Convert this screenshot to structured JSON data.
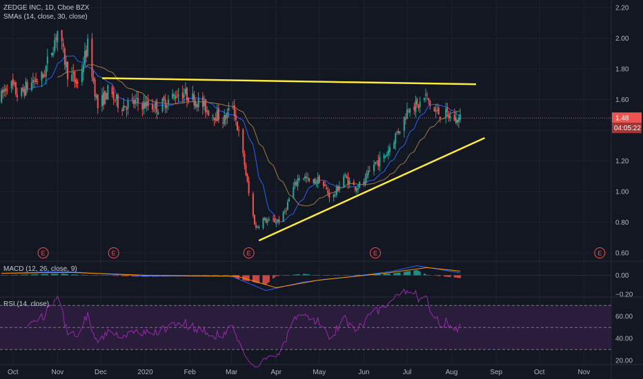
{
  "header": {
    "symbol_line": "ZEDGE INC, 1D, Cboe BZX",
    "sma_line": "SMAs (14, close, 30, close)",
    "macd_line": "MACD (12, 26, close, 9)",
    "rsi_line": "RSI (14, close)"
  },
  "price_tag": {
    "value": "1.48",
    "countdown": "04:05:22"
  },
  "earnings_marker_label": "E",
  "colors": {
    "background": "#131722",
    "grid": "#1e2230",
    "up": "#26a69a",
    "down": "#ef5350",
    "sma_fast": "#2962ff",
    "sma_slow": "#9c7b4a",
    "trendline": "#ffeb3b",
    "rsi_line": "#9c27b0",
    "rsi_band": "#2a1d3b",
    "macd_line": "#2962ff",
    "signal_line": "#ff9800",
    "price_tag": "#ef5350"
  },
  "chart_data": [
    {
      "type": "candlestick",
      "ylim": [
        0.55,
        2.25
      ],
      "y_ticks": [
        0.6,
        0.8,
        1.0,
        1.2,
        1.4,
        1.6,
        1.8,
        2.0,
        2.2
      ],
      "x_ticks": [
        "Oct",
        "Nov",
        "Dec",
        "2020",
        "Feb",
        "Mar",
        "Apr",
        "May",
        "Jun",
        "Jul",
        "Aug",
        "Sep",
        "Oct",
        "Nov"
      ],
      "x_tick_dates": [
        "2019-10-01",
        "2019-11-01",
        "2019-12-01",
        "2020-01-01",
        "2020-02-01",
        "2020-03-01",
        "2020-04-01",
        "2020-05-01",
        "2020-06-01",
        "2020-07-01",
        "2020-08-01",
        "2020-09-01",
        "2020-10-01",
        "2020-11-01"
      ],
      "x_range": [
        "2019-09-22",
        "2020-11-20"
      ],
      "keypoints": [
        [
          "2019-09-22",
          1.6
        ],
        [
          "2019-09-28",
          1.72
        ],
        [
          "2019-10-05",
          1.62
        ],
        [
          "2019-10-12",
          1.7
        ],
        [
          "2019-10-22",
          1.75
        ],
        [
          "2019-11-01",
          2.05
        ],
        [
          "2019-11-08",
          1.78
        ],
        [
          "2019-11-15",
          1.7
        ],
        [
          "2019-11-22",
          1.95
        ],
        [
          "2019-11-29",
          1.55
        ],
        [
          "2019-12-06",
          1.65
        ],
        [
          "2019-12-15",
          1.56
        ],
        [
          "2019-12-25",
          1.58
        ],
        [
          "2020-01-10",
          1.55
        ],
        [
          "2020-01-25",
          1.65
        ],
        [
          "2020-02-05",
          1.6
        ],
        [
          "2020-02-15",
          1.52
        ],
        [
          "2020-02-25",
          1.47
        ],
        [
          "2020-03-02",
          1.57
        ],
        [
          "2020-03-05",
          1.42
        ],
        [
          "2020-03-10",
          1.18
        ],
        [
          "2020-03-14",
          0.92
        ],
        [
          "2020-03-18",
          0.76
        ],
        [
          "2020-03-22",
          0.82
        ],
        [
          "2020-03-28",
          0.8
        ],
        [
          "2020-04-05",
          0.82
        ],
        [
          "2020-04-12",
          1.0
        ],
        [
          "2020-04-18",
          1.12
        ],
        [
          "2020-04-25",
          1.05
        ],
        [
          "2020-05-01",
          1.08
        ],
        [
          "2020-05-10",
          0.95
        ],
        [
          "2020-05-18",
          1.1
        ],
        [
          "2020-05-25",
          1.03
        ],
        [
          "2020-06-01",
          1.05
        ],
        [
          "2020-06-08",
          1.18
        ],
        [
          "2020-06-15",
          1.22
        ],
        [
          "2020-06-22",
          1.35
        ],
        [
          "2020-06-28",
          1.45
        ],
        [
          "2020-07-03",
          1.58
        ],
        [
          "2020-07-08",
          1.55
        ],
        [
          "2020-07-14",
          1.62
        ],
        [
          "2020-07-20",
          1.52
        ],
        [
          "2020-07-28",
          1.5
        ],
        [
          "2020-08-04",
          1.47
        ],
        [
          "2020-08-09",
          1.48
        ]
      ],
      "sma": [
        {
          "name": "SMA 14",
          "period": 14
        },
        {
          "name": "SMA 30",
          "period": 30
        }
      ],
      "trendlines": [
        {
          "from": [
            "2019-12-02",
            1.74
          ],
          "to": [
            "2020-08-18",
            1.7
          ]
        },
        {
          "from": [
            "2020-03-20",
            0.68
          ],
          "to": [
            "2020-08-24",
            1.35
          ]
        }
      ],
      "last_price": 1.48,
      "earnings_dates": [
        "2019-10-22",
        "2019-12-10",
        "2020-03-13",
        "2020-06-09",
        "2020-11-12"
      ]
    },
    {
      "type": "line",
      "ylim": [
        -0.22,
        0.14
      ],
      "y_ticks": [
        0.0,
        -0.2
      ],
      "y_tick_labels": [
        "0.00",
        "−0.20"
      ],
      "series": [
        {
          "name": "MACD",
          "keypoints": [
            [
              "2019-09-22",
              0.02
            ],
            [
              "2019-11-05",
              0.04
            ],
            [
              "2020-01-01",
              -0.01
            ],
            [
              "2020-03-01",
              -0.01
            ],
            [
              "2020-03-25",
              -0.16
            ],
            [
              "2020-04-20",
              -0.07
            ],
            [
              "2020-05-20",
              -0.02
            ],
            [
              "2020-06-20",
              0.04
            ],
            [
              "2020-07-08",
              0.1
            ],
            [
              "2020-08-09",
              0.02
            ]
          ]
        },
        {
          "name": "Signal",
          "keypoints": [
            [
              "2019-09-22",
              0.02
            ],
            [
              "2019-11-10",
              0.03
            ],
            [
              "2020-01-01",
              0.0
            ],
            [
              "2020-03-05",
              -0.01
            ],
            [
              "2020-04-01",
              -0.13
            ],
            [
              "2020-05-01",
              -0.05
            ],
            [
              "2020-06-15",
              0.02
            ],
            [
              "2020-07-15",
              0.08
            ],
            [
              "2020-08-09",
              0.04
            ]
          ]
        }
      ]
    },
    {
      "type": "line",
      "ylim": [
        17,
        77
      ],
      "y_ticks": [
        20.0,
        40.0,
        60.0
      ],
      "y_tick_labels": [
        "20.00",
        "40.00",
        "60.00"
      ],
      "bands": [
        30,
        70
      ],
      "series": [
        {
          "name": "RSI",
          "period": 14
        }
      ]
    }
  ]
}
